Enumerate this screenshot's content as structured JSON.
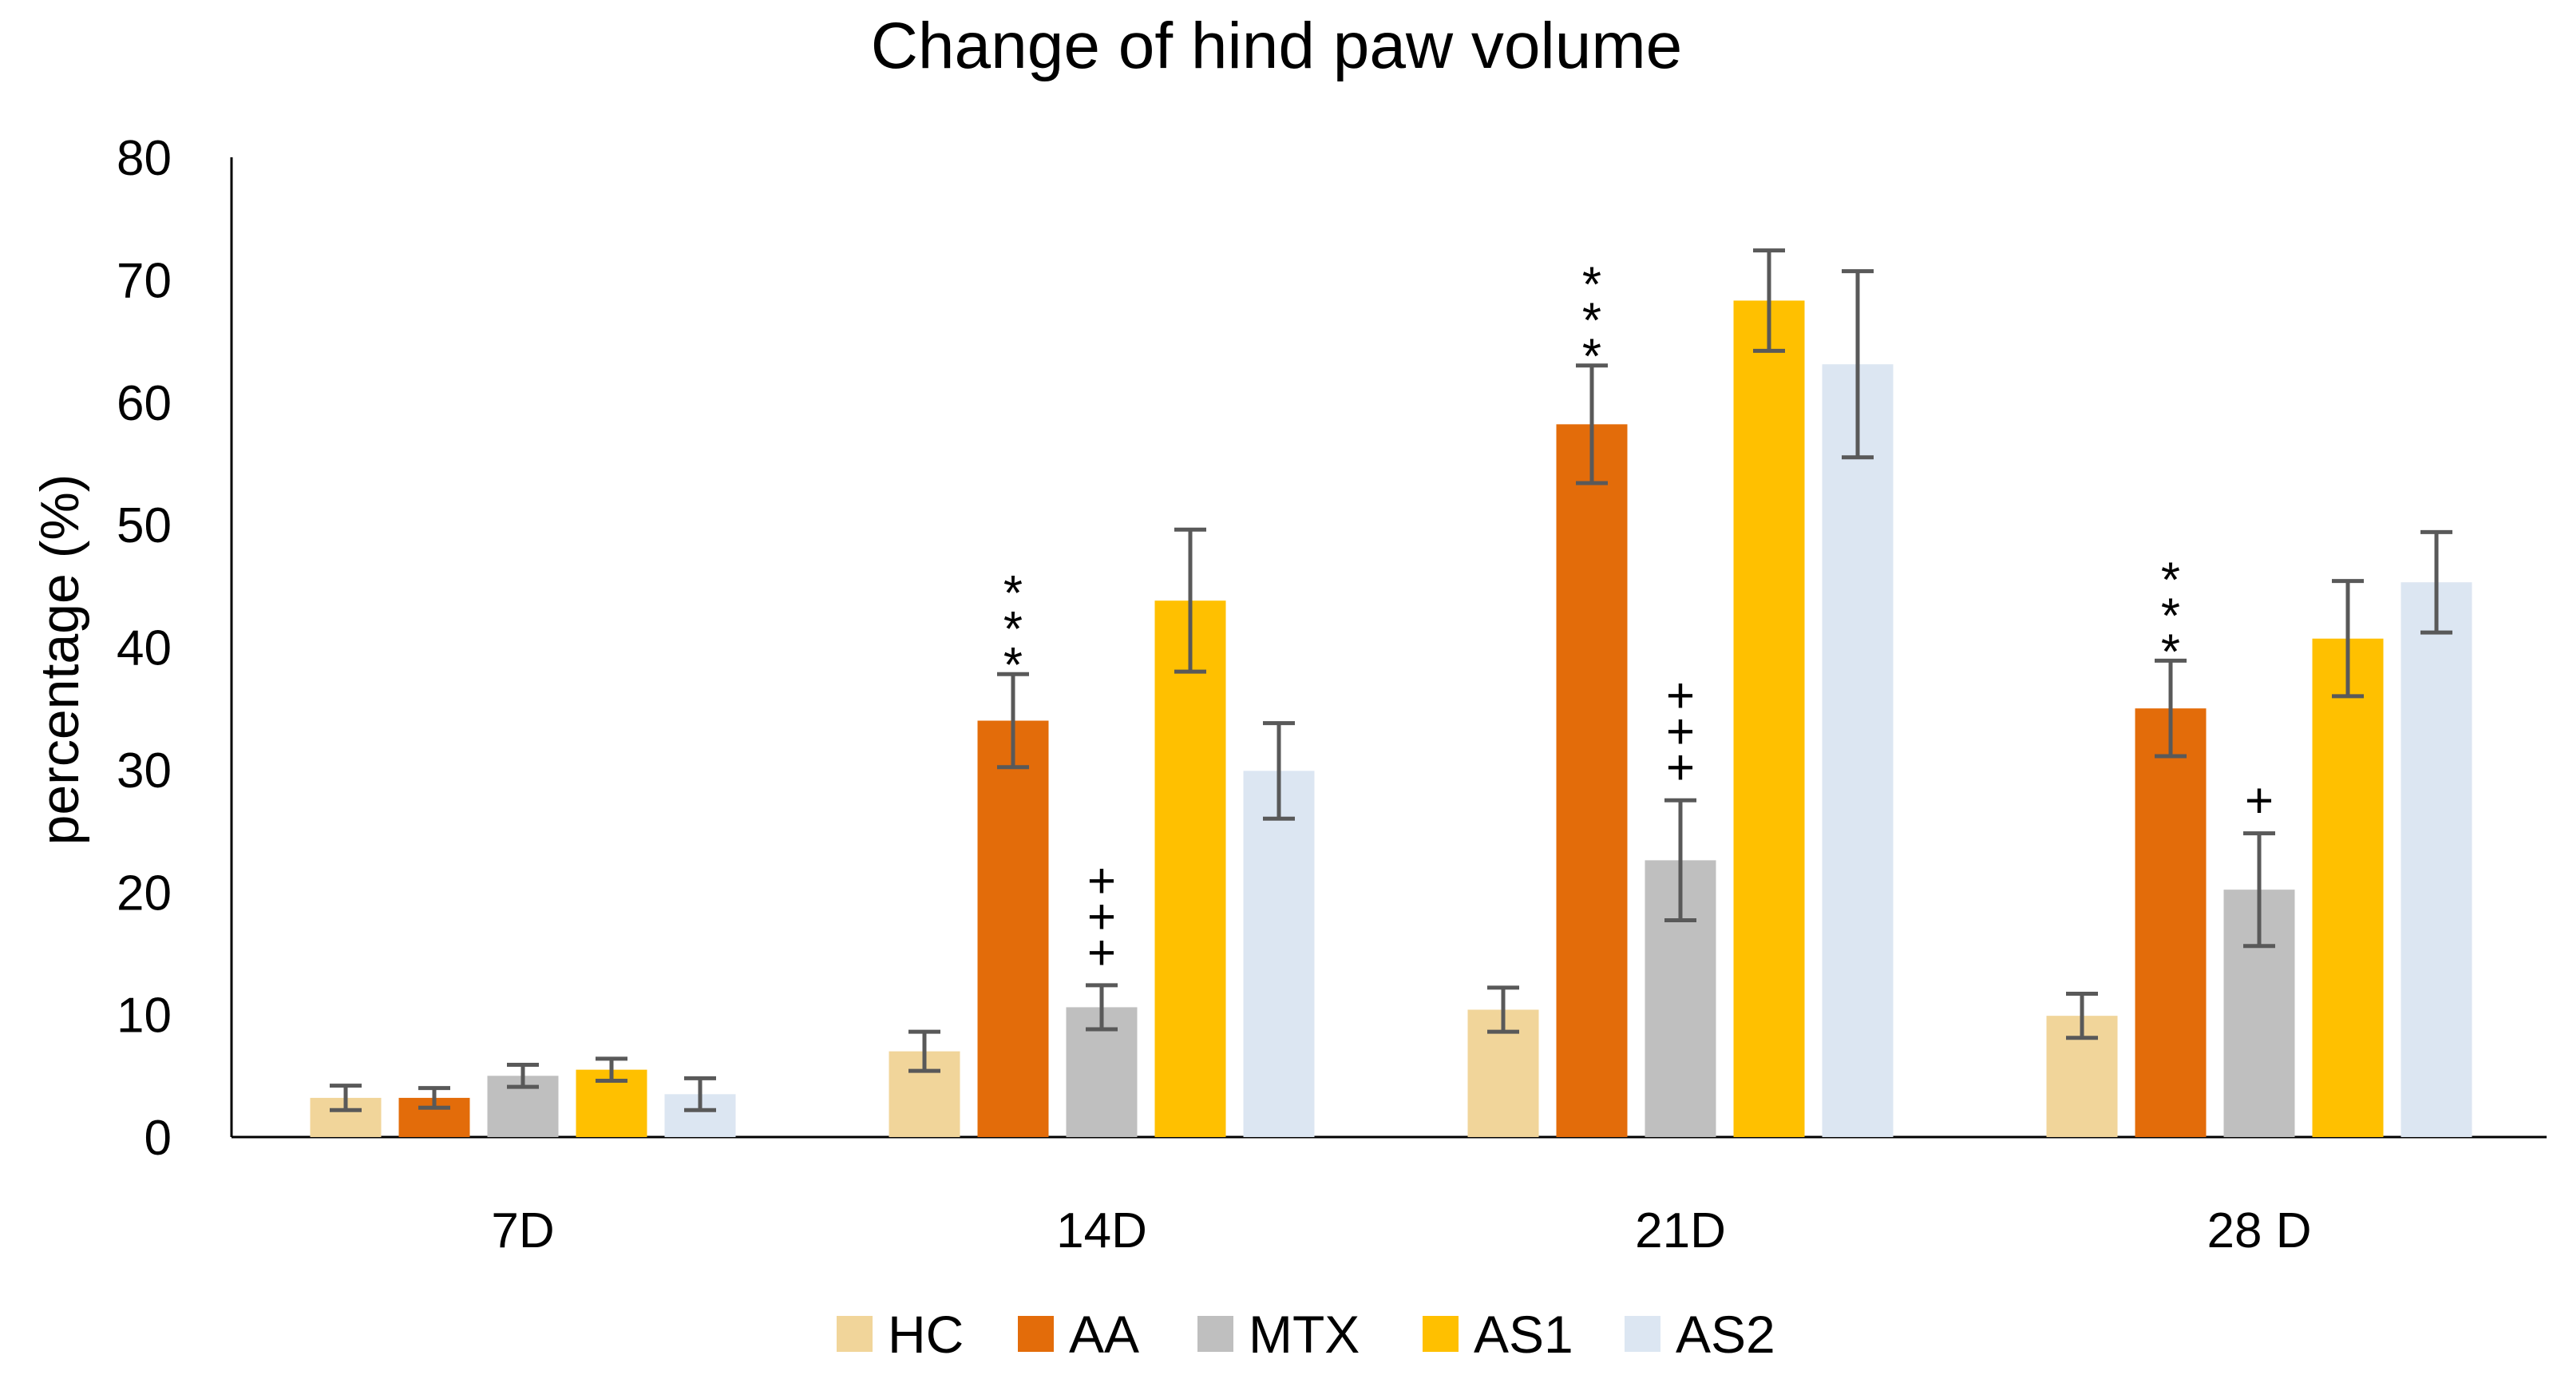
{
  "chart_data": {
    "type": "bar",
    "title": "Change of hind paw volume",
    "xlabel": "",
    "ylabel": "percentage (%)",
    "ylim": [
      0,
      80
    ],
    "yticks": [
      "0",
      "10",
      "20",
      "30",
      "40",
      "50",
      "60",
      "70",
      "80"
    ],
    "ytick_values": [
      0,
      10,
      20,
      30,
      40,
      50,
      60,
      70,
      80
    ],
    "categories": [
      "7D",
      "14D",
      "21D",
      "28 D"
    ],
    "legend_position": "bottom",
    "grid": false,
    "series": [
      {
        "name": "HC",
        "color": "#F1D59A",
        "values": [
          3.2,
          7.0,
          10.4,
          9.9
        ],
        "errors": [
          1.0,
          1.6,
          1.8,
          1.8
        ],
        "annotations": [
          "",
          "",
          "",
          ""
        ]
      },
      {
        "name": "AA",
        "color": "#E36C0A",
        "values": [
          3.2,
          34.0,
          58.2,
          35.0
        ],
        "errors": [
          0.8,
          3.8,
          4.8,
          3.9
        ],
        "annotations": [
          "",
          "***",
          "***",
          "***"
        ]
      },
      {
        "name": "MTX",
        "color": "#BFBFBF",
        "values": [
          5.0,
          10.6,
          22.6,
          20.2
        ],
        "errors": [
          0.9,
          1.8,
          4.9,
          4.6
        ],
        "annotations": [
          "",
          "+++",
          "+++",
          "+"
        ]
      },
      {
        "name": "AS1",
        "color": "#FFC000",
        "values": [
          5.5,
          43.8,
          68.3,
          40.7
        ],
        "errors": [
          0.9,
          5.8,
          4.1,
          4.7
        ],
        "annotations": [
          "",
          "",
          "",
          ""
        ]
      },
      {
        "name": "AS2",
        "color": "#DCE6F2",
        "values": [
          3.5,
          29.9,
          63.1,
          45.3
        ],
        "errors": [
          1.3,
          3.9,
          7.6,
          4.1
        ],
        "annotations": [
          "",
          "",
          "",
          ""
        ]
      }
    ],
    "error_bar_color": "#595959",
    "axis_color": "#000000"
  }
}
